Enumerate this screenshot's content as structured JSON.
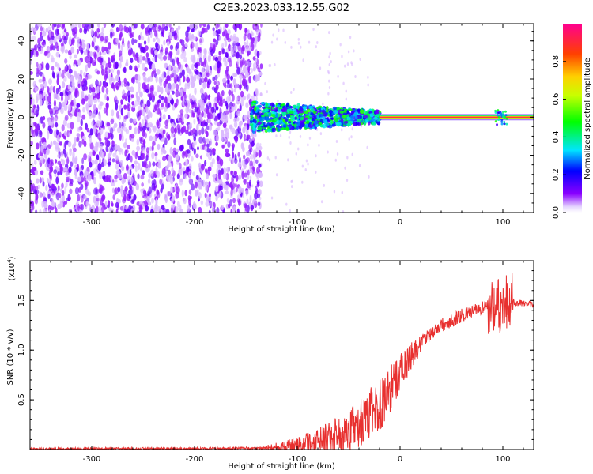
{
  "figure": {
    "title": "C2E3.2023.033.12.55.G02"
  },
  "colorbar": {
    "label": "Normalized spectral amplitude",
    "ticks": [
      "0.0",
      "0.2",
      "0.4",
      "0.6",
      "0.8"
    ],
    "tick_values": [
      0.0,
      0.2,
      0.4,
      0.6,
      0.8
    ],
    "range": [
      0,
      1
    ]
  },
  "chart_data": [
    {
      "type": "heatmap",
      "title": "",
      "xlabel": "Height of straight line (km)",
      "ylabel": "Frequency (Hz)",
      "xlim": [
        -360,
        130
      ],
      "ylim": [
        -50,
        49
      ],
      "xticks": [
        -300,
        -200,
        -100,
        0,
        100
      ],
      "xtick_labels": [
        "-300",
        "-200",
        "-100",
        "0",
        "100"
      ],
      "yticks": [
        -40,
        -20,
        0,
        20,
        40
      ],
      "ytick_labels": [
        "-40",
        "-20",
        "0",
        "20",
        "40"
      ],
      "colormap": "rainbow (white at 0, violet, blue, cyan, green, yellow, red)",
      "regions": [
        {
          "x_range": [
            -360,
            -145
          ],
          "freq_range": [
            -50,
            49
          ],
          "amplitude": 0.05,
          "note": "broadband noise"
        },
        {
          "x_range": [
            -145,
            -20
          ],
          "freq_center": 0,
          "freq_halfwidth": 8,
          "amplitude": 0.3
        },
        {
          "x_range": [
            -20,
            130
          ],
          "freq_center": 0,
          "freq_halfwidth": 1,
          "amplitude": 0.95,
          "note": "narrow carrier line"
        }
      ]
    },
    {
      "type": "line",
      "title": "",
      "xlabel": "Height of straight line (km)",
      "ylabel": "SNR (10 * v/v)",
      "multiplier": "(x10",
      "multiplier_exp": "4",
      "multiplier_close": ")",
      "xlim": [
        -360,
        130
      ],
      "ylim": [
        0,
        19000
      ],
      "xticks": [
        -300,
        -200,
        -100,
        0,
        100
      ],
      "xtick_labels": [
        "-300",
        "-200",
        "-100",
        "0",
        "100"
      ],
      "yticks": [
        5000,
        10000,
        15000
      ],
      "ytick_labels": [
        "0.5",
        "1.0",
        "1.5"
      ],
      "series": [
        {
          "color": "#e8302f",
          "x": [
            -360,
            -300,
            -200,
            -120,
            -100,
            -80,
            -60,
            -40,
            -30,
            -20,
            -10,
            0,
            10,
            20,
            40,
            60,
            80,
            100,
            110,
            130
          ],
          "y": [
            60,
            80,
            100,
            150,
            250,
            700,
            1500,
            2500,
            3500,
            4500,
            6000,
            7800,
            9200,
            10700,
            12500,
            13500,
            14200,
            14700,
            14800,
            14600
          ]
        }
      ]
    }
  ]
}
